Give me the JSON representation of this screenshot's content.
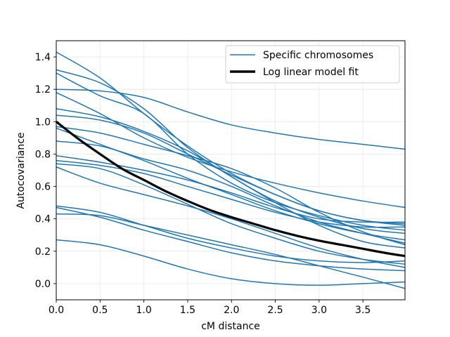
{
  "chart_data": {
    "type": "line",
    "title": "",
    "xlabel": "cM distance",
    "ylabel": "Autocovariance",
    "xlim": [
      0,
      3.98
    ],
    "ylim": [
      -0.1,
      1.5
    ],
    "grid": true,
    "legend_position": "top-right",
    "xticks": [
      "0.0",
      "0.5",
      "1.0",
      "1.5",
      "2.0",
      "2.5",
      "3.0",
      "3.5"
    ],
    "yticks": [
      "0.0",
      "0.2",
      "0.4",
      "0.6",
      "0.8",
      "1.0",
      "1.2",
      "1.4"
    ],
    "legend": [
      {
        "label": "Specific chromosomes",
        "color": "#1f77b4"
      },
      {
        "label": "Log linear model fit",
        "color": "#000000"
      }
    ],
    "x": [
      0.0,
      0.5,
      1.0,
      1.5,
      2.0,
      2.5,
      3.0,
      3.5,
      3.98
    ],
    "chromosome_curves": [
      [
        1.43,
        1.27,
        1.05,
        0.85,
        0.68,
        0.55,
        0.45,
        0.39,
        0.36
      ],
      [
        1.32,
        1.24,
        1.08,
        0.84,
        0.66,
        0.51,
        0.41,
        0.34,
        0.31
      ],
      [
        1.3,
        1.16,
        1.05,
        0.8,
        0.62,
        0.5,
        0.42,
        0.36,
        0.33
      ],
      [
        1.2,
        1.19,
        1.15,
        1.06,
        0.98,
        0.93,
        0.89,
        0.86,
        0.83
      ],
      [
        1.18,
        1.05,
        0.9,
        0.78,
        0.69,
        0.62,
        0.56,
        0.51,
        0.47
      ],
      [
        1.08,
        1.03,
        0.94,
        0.82,
        0.66,
        0.5,
        0.36,
        0.26,
        0.22
      ],
      [
        1.04,
        1.01,
        0.93,
        0.8,
        0.67,
        0.55,
        0.45,
        0.39,
        0.37
      ],
      [
        0.97,
        0.93,
        0.86,
        0.79,
        0.71,
        0.59,
        0.44,
        0.32,
        0.24
      ],
      [
        0.96,
        0.86,
        0.76,
        0.65,
        0.55,
        0.45,
        0.37,
        0.31,
        0.27
      ],
      [
        0.88,
        0.85,
        0.77,
        0.7,
        0.6,
        0.48,
        0.38,
        0.31,
        0.25
      ],
      [
        0.79,
        0.75,
        0.7,
        0.64,
        0.56,
        0.47,
        0.4,
        0.38,
        0.38
      ],
      [
        0.76,
        0.73,
        0.68,
        0.6,
        0.52,
        0.44,
        0.38,
        0.35,
        0.35
      ],
      [
        0.74,
        0.71,
        0.61,
        0.49,
        0.37,
        0.28,
        0.2,
        0.15,
        0.12
      ],
      [
        0.72,
        0.62,
        0.55,
        0.48,
        0.4,
        0.31,
        0.22,
        0.15,
        0.1
      ],
      [
        0.48,
        0.44,
        0.36,
        0.28,
        0.22,
        0.17,
        0.14,
        0.13,
        0.14
      ],
      [
        0.47,
        0.41,
        0.33,
        0.26,
        0.19,
        0.14,
        0.11,
        0.09,
        0.08
      ],
      [
        0.43,
        0.42,
        0.36,
        0.3,
        0.24,
        0.18,
        0.11,
        0.04,
        -0.03
      ],
      [
        0.27,
        0.24,
        0.17,
        0.09,
        0.03,
        0.0,
        -0.01,
        0.0,
        0.01
      ]
    ],
    "model_fit": {
      "x": [
        0.0,
        0.25,
        0.5,
        0.75,
        1.0,
        1.25,
        1.5,
        1.75,
        2.0,
        2.25,
        2.5,
        2.75,
        3.0,
        3.25,
        3.5,
        3.75,
        3.98
      ],
      "y": [
        1.0,
        0.895,
        0.8,
        0.71,
        0.64,
        0.57,
        0.51,
        0.455,
        0.41,
        0.37,
        0.33,
        0.295,
        0.265,
        0.24,
        0.215,
        0.19,
        0.17
      ]
    }
  }
}
